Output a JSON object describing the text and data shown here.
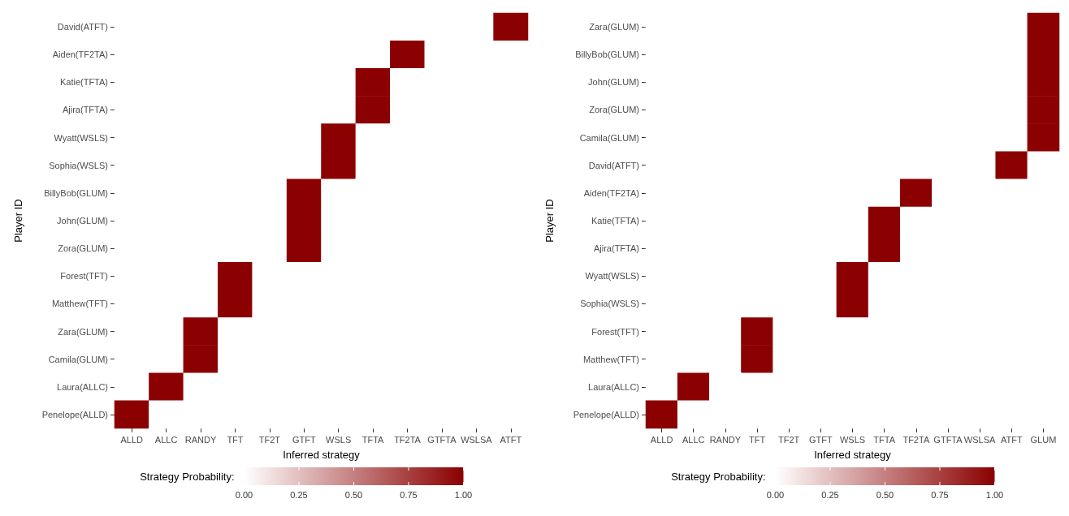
{
  "chart_data": [
    {
      "type": "heatmap",
      "xlabel": "Inferred strategy",
      "ylabel": "Player ID",
      "clabel": "Strategy Probability:",
      "color": "#8b0000",
      "categories": [
        "ALLD",
        "ALLC",
        "RANDY",
        "TFT",
        "TF2T",
        "GTFT",
        "WSLS",
        "TFTA",
        "TF2TA",
        "GTFTA",
        "WSLSA",
        "ATFT"
      ],
      "y_categories": [
        "David(ATFT)",
        "Aiden(TF2TA)",
        "Katie(TFTA)",
        "Ajira(TFTA)",
        "Wyatt(WSLS)",
        "Sophia(WSLS)",
        "BillyBob(GLUM)",
        "John(GLUM)",
        "Zora(GLUM)",
        "Forest(TFT)",
        "Matthew(TFT)",
        "Zara(GLUM)",
        "Camila(GLUM)",
        "Laura(ALLC)",
        "Penelope(ALLD)"
      ],
      "cells": [
        [
          0,
          0,
          0,
          0,
          0,
          0,
          0,
          0,
          0,
          0,
          0,
          1
        ],
        [
          0,
          0,
          0,
          0,
          0,
          0,
          0,
          0,
          1,
          0,
          0,
          0
        ],
        [
          0,
          0,
          0,
          0,
          0,
          0,
          0,
          1,
          0,
          0,
          0,
          0
        ],
        [
          0,
          0,
          0,
          0,
          0,
          0,
          0,
          1,
          0,
          0,
          0,
          0
        ],
        [
          0,
          0,
          0,
          0,
          0,
          0,
          1,
          0,
          0,
          0,
          0,
          0
        ],
        [
          0,
          0,
          0,
          0,
          0,
          0,
          1,
          0,
          0,
          0,
          0,
          0
        ],
        [
          0,
          0,
          0,
          0,
          0,
          1,
          0,
          0,
          0,
          0,
          0,
          0
        ],
        [
          0,
          0,
          0,
          0,
          0,
          1,
          0,
          0,
          0,
          0,
          0,
          0
        ],
        [
          0,
          0,
          0,
          0,
          0,
          1,
          0,
          0,
          0,
          0,
          0,
          0
        ],
        [
          0,
          0,
          0,
          1,
          0,
          0,
          0,
          0,
          0,
          0,
          0,
          0
        ],
        [
          0,
          0,
          0,
          1,
          0,
          0,
          0,
          0,
          0,
          0,
          0,
          0
        ],
        [
          0,
          0,
          1,
          0,
          0,
          0,
          0,
          0,
          0,
          0,
          0,
          0
        ],
        [
          0,
          0,
          1,
          0,
          0,
          0,
          0,
          0,
          0,
          0,
          0,
          0
        ],
        [
          0,
          1,
          0,
          0,
          0,
          0,
          0,
          0,
          0,
          0,
          0,
          0
        ],
        [
          1,
          0,
          0,
          0,
          0,
          0,
          0,
          0,
          0,
          0,
          0,
          0
        ]
      ],
      "clim": [
        0,
        1
      ],
      "cticks": [
        {
          "value": 0,
          "label": "0.00"
        },
        {
          "value": 0.25,
          "label": "0.25"
        },
        {
          "value": 0.5,
          "label": "0.50"
        },
        {
          "value": 0.75,
          "label": "0.75"
        },
        {
          "value": 1,
          "label": "1.00"
        }
      ]
    },
    {
      "type": "heatmap",
      "xlabel": "Inferred strategy",
      "ylabel": "Player ID",
      "clabel": "Strategy Probability:",
      "color": "#8b0000",
      "categories": [
        "ALLD",
        "ALLC",
        "RANDY",
        "TFT",
        "TF2T",
        "GTFT",
        "WSLS",
        "TFTA",
        "TF2TA",
        "GTFTA",
        "WSLSA",
        "ATFT",
        "GLUM"
      ],
      "y_categories": [
        "Zara(GLUM)",
        "BillyBob(GLUM)",
        "John(GLUM)",
        "Zora(GLUM)",
        "Camila(GLUM)",
        "David(ATFT)",
        "Aiden(TF2TA)",
        "Katie(TFTA)",
        "Ajira(TFTA)",
        "Wyatt(WSLS)",
        "Sophia(WSLS)",
        "Forest(TFT)",
        "Matthew(TFT)",
        "Laura(ALLC)",
        "Penelope(ALLD)"
      ],
      "cells": [
        [
          0,
          0,
          0,
          0,
          0,
          0,
          0,
          0,
          0,
          0,
          0,
          0,
          1
        ],
        [
          0,
          0,
          0,
          0,
          0,
          0,
          0,
          0,
          0,
          0,
          0,
          0,
          1
        ],
        [
          0,
          0,
          0,
          0,
          0,
          0,
          0,
          0,
          0,
          0,
          0,
          0,
          1
        ],
        [
          0,
          0,
          0,
          0,
          0,
          0,
          0,
          0,
          0,
          0,
          0,
          0,
          1
        ],
        [
          0,
          0,
          0,
          0,
          0,
          0,
          0,
          0,
          0,
          0,
          0,
          0,
          1
        ],
        [
          0,
          0,
          0,
          0,
          0,
          0,
          0,
          0,
          0,
          0,
          0,
          1,
          0
        ],
        [
          0,
          0,
          0,
          0,
          0,
          0,
          0,
          0,
          1,
          0,
          0,
          0,
          0
        ],
        [
          0,
          0,
          0,
          0,
          0,
          0,
          0,
          1,
          0,
          0,
          0,
          0,
          0
        ],
        [
          0,
          0,
          0,
          0,
          0,
          0,
          0,
          1,
          0,
          0,
          0,
          0,
          0
        ],
        [
          0,
          0,
          0,
          0,
          0,
          0,
          1,
          0,
          0,
          0,
          0,
          0,
          0
        ],
        [
          0,
          0,
          0,
          0,
          0,
          0,
          1,
          0,
          0,
          0,
          0,
          0,
          0
        ],
        [
          0,
          0,
          0,
          1,
          0,
          0,
          0,
          0,
          0,
          0,
          0,
          0,
          0
        ],
        [
          0,
          0,
          0,
          1,
          0,
          0,
          0,
          0,
          0,
          0,
          0,
          0,
          0
        ],
        [
          0,
          1,
          0,
          0,
          0,
          0,
          0,
          0,
          0,
          0,
          0,
          0,
          0
        ],
        [
          1,
          0,
          0,
          0,
          0,
          0,
          0,
          0,
          0,
          0,
          0,
          0,
          0
        ]
      ],
      "clim": [
        0,
        1
      ],
      "cticks": [
        {
          "value": 0,
          "label": "0.00"
        },
        {
          "value": 0.25,
          "label": "0.25"
        },
        {
          "value": 0.5,
          "label": "0.50"
        },
        {
          "value": 0.75,
          "label": "0.75"
        },
        {
          "value": 1,
          "label": "1.00"
        }
      ]
    }
  ]
}
